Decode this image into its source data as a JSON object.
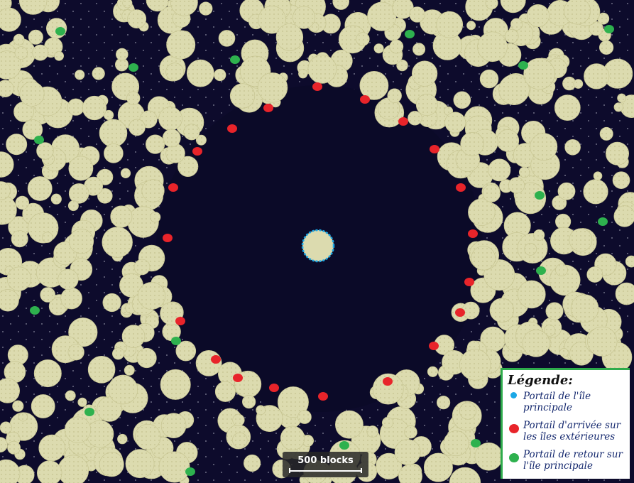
{
  "colors": {
    "void": "#0d0b2c",
    "island": "#ddddb0",
    "island_outline": "#c4c28e",
    "main_portal": "#1aa7e6",
    "arrival_portal": "#e8242a",
    "return_portal": "#2eb14e",
    "legend_border": "#2eab4c"
  },
  "legend": {
    "title": "Légende:",
    "items": [
      {
        "icon": "blue-dot-icon",
        "label": "Portail de l'île principale"
      },
      {
        "icon": "red-blob-icon",
        "label": "Portail d'arrivée sur les îles extérieures"
      },
      {
        "icon": "green-blob-icon",
        "label": "Portail de retour sur l'île principale"
      }
    ]
  },
  "scale": {
    "label": "500 blocks"
  }
}
